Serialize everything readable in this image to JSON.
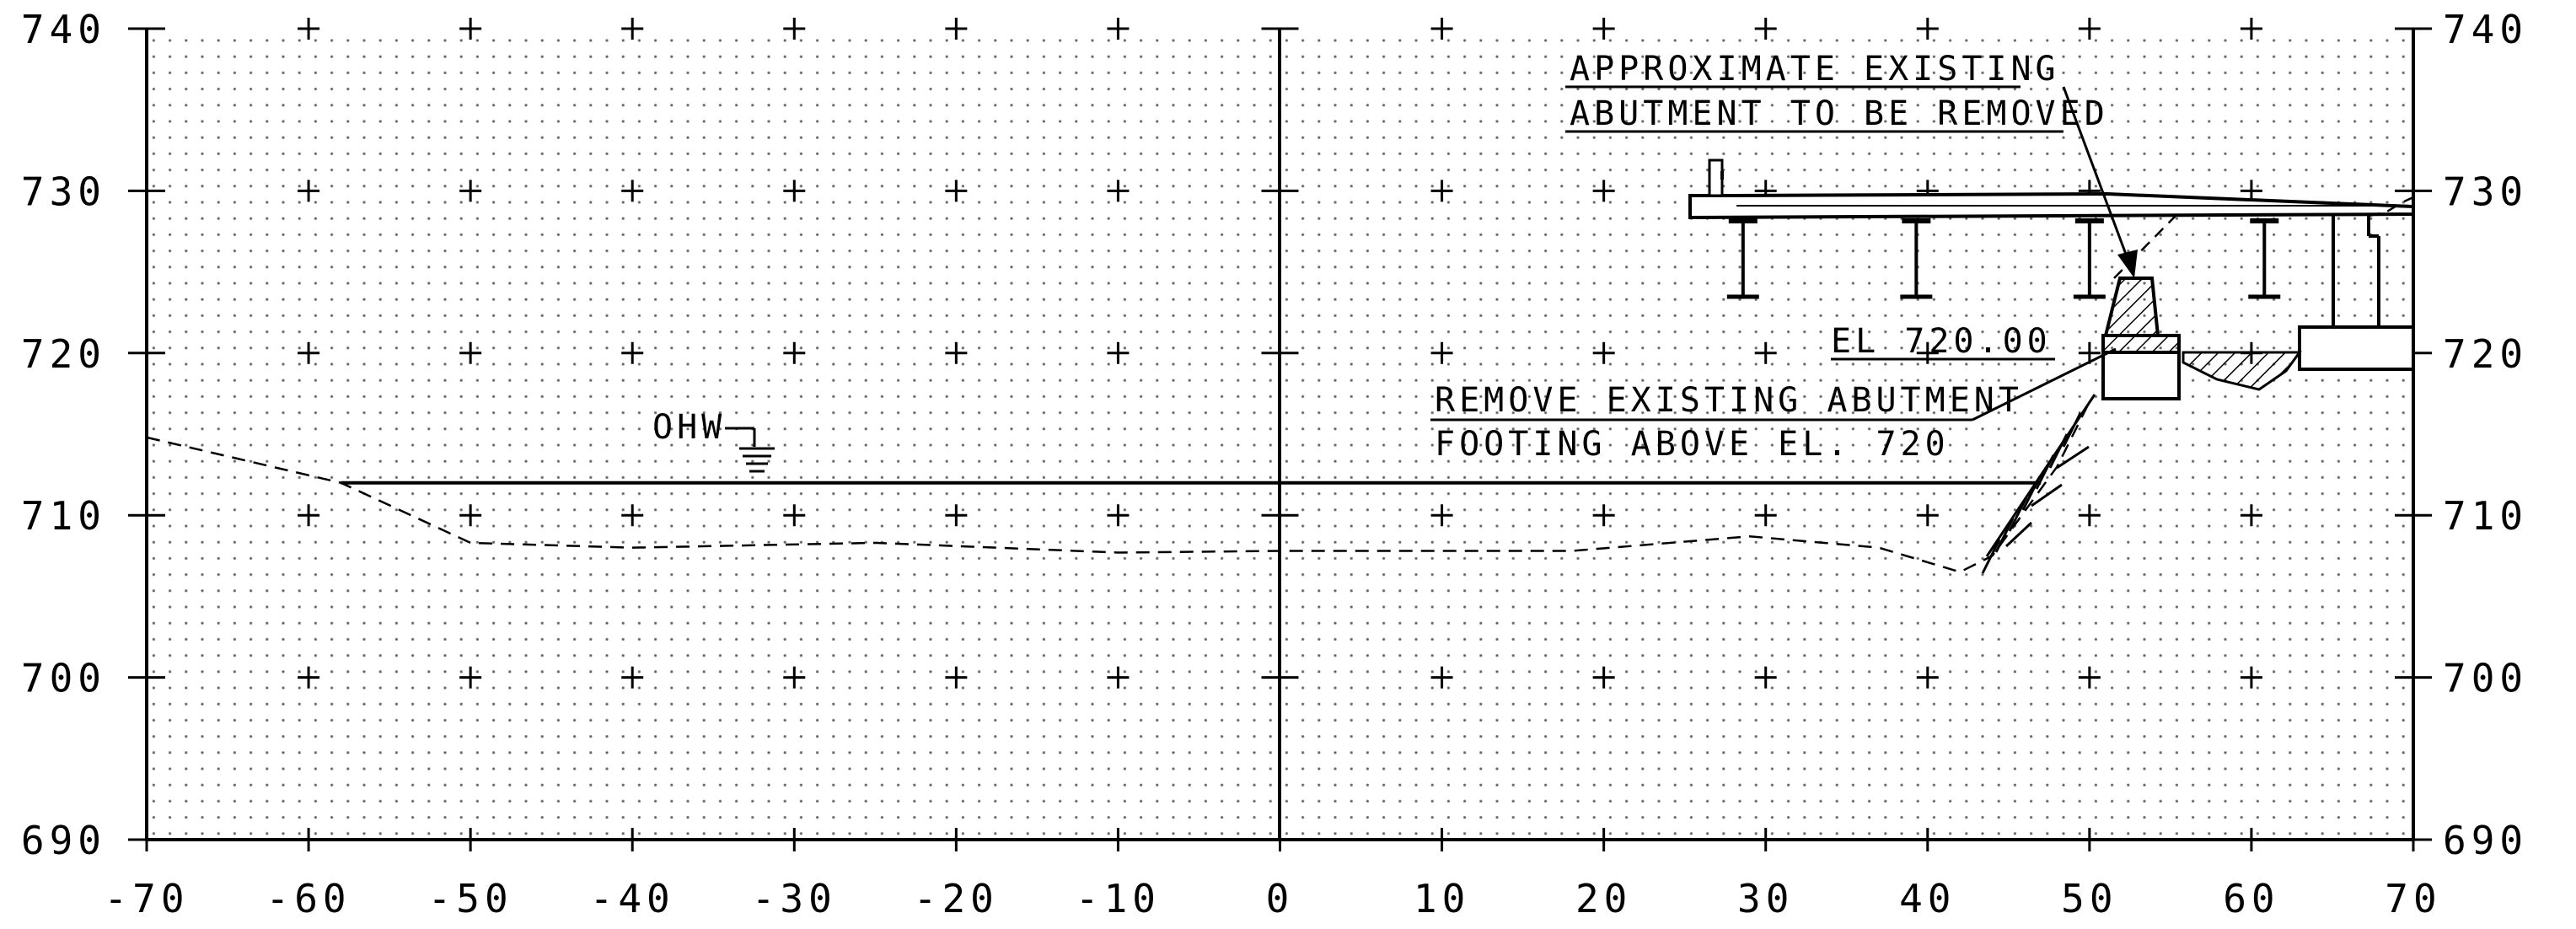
{
  "drawing": {
    "x_range": [
      -70,
      70
    ],
    "y_range": [
      690,
      740
    ],
    "x_ticks": [
      -70,
      -60,
      -50,
      -40,
      -30,
      -20,
      -10,
      0,
      10,
      20,
      30,
      40,
      50,
      60,
      70
    ],
    "x_tick_labels": [
      "-70",
      "-60",
      "-50",
      "-40",
      "-30",
      "-20",
      "-10",
      "0",
      "10",
      "20",
      "30",
      "40",
      "50",
      "60",
      "70"
    ],
    "y_ticks": [
      740,
      730,
      720,
      710,
      700,
      690
    ],
    "y_tick_labels": [
      "740",
      "730",
      "720",
      "710",
      "700",
      "690"
    ],
    "grid": "dotted",
    "centerline_x": 0
  },
  "annotations": {
    "approx_abutment_line1": "APPROXIMATE EXISTING",
    "approx_abutment_line2": "ABUTMENT TO BE REMOVED",
    "elevation_label": "EL 720.00",
    "remove_footing_line1": "REMOVE EXISTING ABUTMENT",
    "remove_footing_line2": "FOOTING ABOVE EL. 720",
    "ohw_label": "OHW"
  },
  "profile": {
    "ohw_elevation": 712,
    "ohw_extent": [
      -58,
      47
    ],
    "ground_line": [
      [
        -70,
        714.8
      ],
      [
        -58,
        712
      ],
      [
        -50,
        708.3
      ],
      [
        -40,
        708
      ],
      [
        -25,
        708.3
      ],
      [
        -10,
        707.7
      ],
      [
        0,
        707.8
      ],
      [
        18,
        707.8
      ],
      [
        29,
        708.7
      ],
      [
        37,
        708
      ],
      [
        42,
        706.5
      ],
      [
        44,
        707.5
      ],
      [
        48,
        713
      ],
      [
        50,
        717
      ]
    ],
    "deck_top": [
      [
        25.5,
        729.2
      ],
      [
        50,
        729.5
      ],
      [
        69.5,
        729.0
      ]
    ],
    "girder_stations": [
      28.6,
      39.3,
      50.0,
      60.8
    ],
    "elevation_datum": 720
  }
}
